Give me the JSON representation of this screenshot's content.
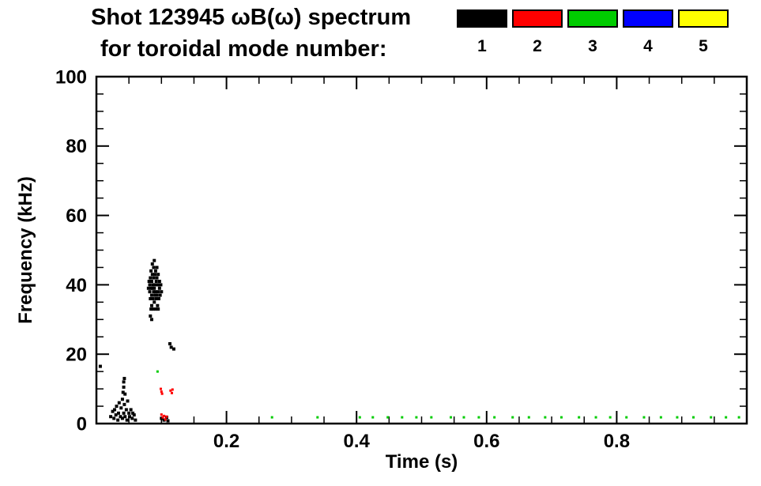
{
  "chart_data": {
    "type": "scatter",
    "title": "Shot 123945 ωB(ω) spectrum",
    "subtitle": "for toroidal mode number:",
    "xlabel": "Time (s)",
    "ylabel": "Frequency (kHz)",
    "xlim": [
      0,
      1.0
    ],
    "ylim": [
      0,
      100
    ],
    "x_tick_values": [
      0.2,
      0.4,
      0.6,
      0.8
    ],
    "x_tick_labels": [
      "0.2",
      "0.4",
      "0.6",
      "0.8"
    ],
    "x_minor_step": 0.05,
    "y_tick_values": [
      0,
      20,
      40,
      60,
      80,
      100
    ],
    "y_tick_labels": [
      "0",
      "20",
      "40",
      "60",
      "80",
      "100"
    ],
    "y_minor_step": 5,
    "grid": false,
    "legend_position": "top-right",
    "legend_entries": [
      "1",
      "2",
      "3",
      "4",
      "5"
    ],
    "series": [
      {
        "name": "1",
        "color": "#000000",
        "point_size": 4,
        "points": [
          [
            0.08,
            39
          ],
          [
            0.081,
            41
          ],
          [
            0.082,
            38
          ],
          [
            0.082,
            40
          ],
          [
            0.083,
            36
          ],
          [
            0.083,
            42
          ],
          [
            0.084,
            44
          ],
          [
            0.084,
            39
          ],
          [
            0.084,
            33
          ],
          [
            0.085,
            37
          ],
          [
            0.085,
            41
          ],
          [
            0.085,
            34
          ],
          [
            0.086,
            43
          ],
          [
            0.086,
            39
          ],
          [
            0.086,
            46
          ],
          [
            0.087,
            36
          ],
          [
            0.087,
            40
          ],
          [
            0.087,
            33
          ],
          [
            0.088,
            38
          ],
          [
            0.088,
            42
          ],
          [
            0.088,
            45
          ],
          [
            0.089,
            35
          ],
          [
            0.089,
            39
          ],
          [
            0.089,
            47
          ],
          [
            0.09,
            37
          ],
          [
            0.09,
            43
          ],
          [
            0.09,
            40
          ],
          [
            0.091,
            38
          ],
          [
            0.091,
            44
          ],
          [
            0.091,
            33
          ],
          [
            0.092,
            41
          ],
          [
            0.092,
            36
          ],
          [
            0.093,
            42
          ],
          [
            0.093,
            37
          ],
          [
            0.093,
            45
          ],
          [
            0.094,
            40
          ],
          [
            0.094,
            34
          ],
          [
            0.095,
            38
          ],
          [
            0.095,
            43
          ],
          [
            0.095,
            33
          ],
          [
            0.096,
            40
          ],
          [
            0.096,
            36
          ],
          [
            0.097,
            41
          ],
          [
            0.097,
            39
          ],
          [
            0.098,
            37
          ],
          [
            0.099,
            40
          ],
          [
            0.1,
            38
          ],
          [
            0.083,
            31
          ],
          [
            0.085,
            30
          ],
          [
            0.022,
            2
          ],
          [
            0.025,
            3.5
          ],
          [
            0.027,
            1.5
          ],
          [
            0.028,
            4
          ],
          [
            0.03,
            2.5
          ],
          [
            0.031,
            5
          ],
          [
            0.033,
            1
          ],
          [
            0.034,
            3
          ],
          [
            0.035,
            6
          ],
          [
            0.037,
            2
          ],
          [
            0.038,
            4.5
          ],
          [
            0.04,
            1.5
          ],
          [
            0.04,
            7
          ],
          [
            0.042,
            3
          ],
          [
            0.043,
            5.5
          ],
          [
            0.044,
            2
          ],
          [
            0.046,
            4
          ],
          [
            0.047,
            1
          ],
          [
            0.048,
            6.5
          ],
          [
            0.05,
            3
          ],
          [
            0.051,
            2
          ],
          [
            0.053,
            4
          ],
          [
            0.055,
            1.5
          ],
          [
            0.056,
            3
          ],
          [
            0.058,
            2.5
          ],
          [
            0.06,
            1
          ],
          [
            0.041,
            9
          ],
          [
            0.042,
            10.5
          ],
          [
            0.042,
            12
          ],
          [
            0.043,
            13
          ],
          [
            0.044,
            8.5
          ],
          [
            0.006,
            16.5
          ],
          [
            0.113,
            23
          ],
          [
            0.115,
            22
          ],
          [
            0.119,
            21.5
          ],
          [
            0.1,
            1.5
          ],
          [
            0.104,
            1
          ],
          [
            0.108,
            1.8
          ],
          [
            0.11,
            0.8
          ]
        ]
      },
      {
        "name": "2",
        "color": "#ff0000",
        "point_size": 3,
        "points": [
          [
            0.099,
            10
          ],
          [
            0.1,
            9.2
          ],
          [
            0.101,
            8.6
          ],
          [
            0.114,
            9.5
          ],
          [
            0.116,
            8.8
          ],
          [
            0.117,
            9.8
          ],
          [
            0.1,
            2.6
          ],
          [
            0.102,
            1.8
          ],
          [
            0.104,
            2.2
          ],
          [
            0.106,
            1.2
          ],
          [
            0.108,
            2.0
          ]
        ]
      },
      {
        "name": "3",
        "color": "#00cc00",
        "point_size": 3,
        "points": [
          [
            0.094,
            15
          ],
          [
            0.27,
            1.8
          ],
          [
            0.34,
            1.8
          ],
          [
            0.405,
            1.8
          ],
          [
            0.425,
            1.8
          ],
          [
            0.448,
            1.8
          ],
          [
            0.47,
            1.8
          ],
          [
            0.492,
            1.8
          ],
          [
            0.515,
            1.8
          ],
          [
            0.545,
            1.8
          ],
          [
            0.565,
            1.8
          ],
          [
            0.588,
            1.8
          ],
          [
            0.612,
            1.8
          ],
          [
            0.64,
            1.8
          ],
          [
            0.665,
            1.8
          ],
          [
            0.69,
            1.8
          ],
          [
            0.715,
            1.8
          ],
          [
            0.742,
            1.8
          ],
          [
            0.768,
            1.8
          ],
          [
            0.79,
            1.8
          ],
          [
            0.815,
            1.8
          ],
          [
            0.842,
            1.8
          ],
          [
            0.868,
            1.8
          ],
          [
            0.893,
            1.8
          ],
          [
            0.918,
            1.8
          ],
          [
            0.945,
            1.8
          ],
          [
            0.968,
            1.8
          ],
          [
            0.988,
            1.8
          ]
        ]
      },
      {
        "name": "4",
        "color": "#0000ff",
        "point_size": 3,
        "points": []
      },
      {
        "name": "5",
        "color": "#ffff00",
        "point_size": 3,
        "points": []
      }
    ]
  }
}
